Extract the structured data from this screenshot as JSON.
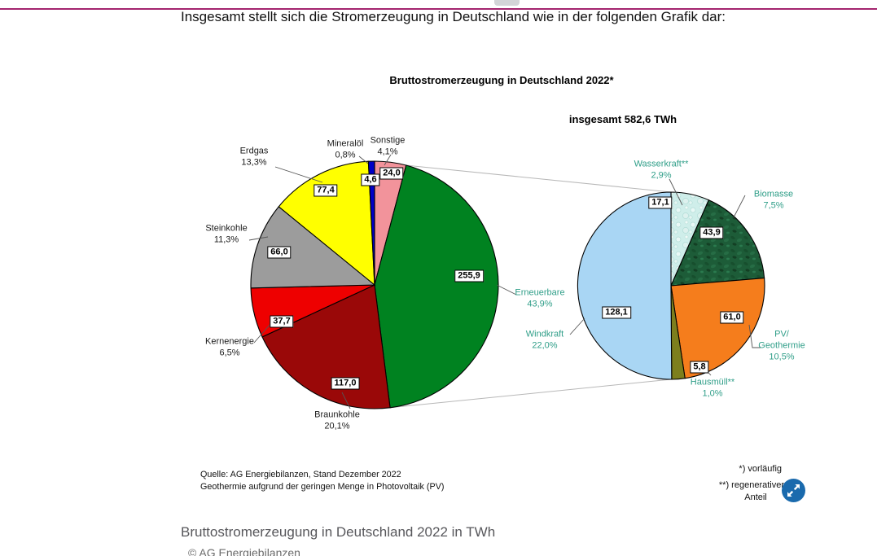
{
  "page": {
    "intro_text": "Insgesamt stellt sich die Stromerzeugung in Deutschland wie in der folgenden Grafik dar:",
    "caption": "Bruttostromerzeugung in Deutschland 2022 in TWh",
    "copyright": "© AG Energiebilanzen"
  },
  "styles": {
    "accent_line_color": "#a4256f",
    "renewable_label_color": "#2f9e88",
    "expand_button_color": "#1a6aad",
    "connector_line_color": "#b8b8b8"
  },
  "icons": {
    "expand": "diagonal-expand-arrows-icon"
  },
  "chart_data": {
    "type": "pie",
    "title": "Bruttostromerzeugung in Deutschland 2022*",
    "subtitle": "insgesamt 582,6 TWh",
    "total": 582.6,
    "unit": "TWh",
    "main_pie": {
      "description": "Gesamtstromerzeugung nach Energieträger, im Uhrzeigersinn ab 12 Uhr",
      "total_pct": 100,
      "slices": [
        {
          "label": "Sonstige",
          "pct": 4.1,
          "pct_label": "4,1%",
          "value": 24.0,
          "value_label": "24,0",
          "color": "#f2939b"
        },
        {
          "label": "Erneuerbare",
          "pct": 43.9,
          "pct_label": "43,9%",
          "value": 255.9,
          "value_label": "255,9",
          "color": "#008220"
        },
        {
          "label": "Braunkohle",
          "pct": 20.1,
          "pct_label": "20,1%",
          "value": 117.0,
          "value_label": "117,0",
          "color": "#9a0808"
        },
        {
          "label": "Kernenergie",
          "pct": 6.5,
          "pct_label": "6,5%",
          "value": 37.7,
          "value_label": "37,7",
          "color": "#ee0000"
        },
        {
          "label": "Steinkohle",
          "pct": 11.3,
          "pct_label": "11,3%",
          "value": 66.0,
          "value_label": "66,0",
          "color": "#9c9c9c"
        },
        {
          "label": "Erdgas",
          "pct": 13.3,
          "pct_label": "13,3%",
          "value": 77.4,
          "value_label": "77,4",
          "color": "#ffff00"
        },
        {
          "label": "Mineralöl",
          "pct": 0.8,
          "pct_label": "0,8%",
          "value": 4.6,
          "value_label": "4,6",
          "color": "#0000c8"
        }
      ]
    },
    "renewables_pie": {
      "description": "Aufschlüsselung der Erneuerbaren, im Uhrzeigersinn ab 12 Uhr",
      "total_pct": 43.9,
      "slices": [
        {
          "label": "Wasserkraft**",
          "pct": 2.9,
          "pct_label": "2,9%",
          "value": 17.1,
          "value_label": "17,1",
          "color": "#cfeeea",
          "texture": "water"
        },
        {
          "label": "Biomasse",
          "pct": 7.5,
          "pct_label": "7,5%",
          "value": 43.9,
          "value_label": "43,9",
          "color": "#1d5c38",
          "texture": "leaves"
        },
        {
          "label": "PV/Geothermie",
          "pct": 10.5,
          "pct_label": "10,5%",
          "value": 61.0,
          "value_label": "61,0",
          "color": "#f57d1c"
        },
        {
          "label": "Hausmüll**",
          "pct": 1.0,
          "pct_label": "1,0%",
          "value": 5.8,
          "value_label": "5,8",
          "color": "#7d7f1d"
        },
        {
          "label": "Windkraft",
          "pct": 22.0,
          "pct_label": "22,0%",
          "value": 128.1,
          "value_label": "128,1",
          "color": "#a9d6f4"
        }
      ]
    },
    "source_line1": "Quelle: AG Energiebilanzen, Stand Dezember 2022",
    "source_line2": "Geothermie aufgrund der geringen Menge in Photovoltaik (PV)",
    "footnote1": "*) vorläufig",
    "footnote2_line1": "**) regenerativer",
    "footnote2_line2": "Anteil",
    "legend_position": "none",
    "grid": false
  }
}
